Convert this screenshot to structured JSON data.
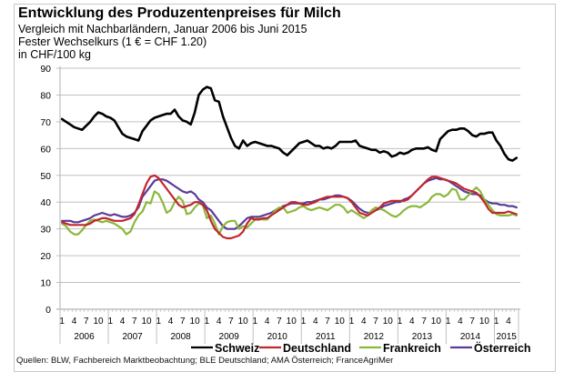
{
  "chart_data": {
    "type": "line",
    "title": "Entwicklung des Produzentenpreises für Milch",
    "subtitles": [
      "Vergleich mit Nachbarländern, Januar 2006 bis Juni 2015",
      "Fester Wechselkurs (1 € = CHF 1.20)",
      "in CHF/100 kg"
    ],
    "xlabel": "",
    "ylabel": "CHF/100 kg",
    "ylim": [
      0,
      90
    ],
    "yticks": [
      0,
      10,
      20,
      30,
      40,
      50,
      60,
      70,
      80,
      90
    ],
    "grid": true,
    "x_start": "2006-01",
    "x_end": "2015-06",
    "month_tick_labels": [
      "1",
      "4",
      "7",
      "10"
    ],
    "years": [
      "2006",
      "2007",
      "2008",
      "2009",
      "2010",
      "2011",
      "2012",
      "2013",
      "2014",
      "2015"
    ],
    "legend_position": "bottom",
    "series": [
      {
        "name": "Schweiz",
        "color": "#000000",
        "values": [
          71,
          70,
          69,
          68,
          67.5,
          67,
          68.5,
          70,
          72,
          73.5,
          73,
          72,
          71.5,
          70.5,
          68,
          65.5,
          64.5,
          64,
          63.5,
          63,
          66.5,
          68.5,
          70.5,
          71.5,
          72,
          72.5,
          73,
          73,
          74.5,
          72,
          70.5,
          70,
          69,
          73.5,
          80,
          82,
          83,
          82.5,
          78,
          77.5,
          72,
          68,
          64,
          61,
          60,
          63,
          61,
          62,
          62.5,
          62,
          61.5,
          61,
          61,
          60.5,
          60,
          58.5,
          57.5,
          59,
          60.5,
          62,
          62.5,
          63,
          62,
          61,
          61,
          60,
          60.5,
          60,
          61,
          62.5,
          62.5,
          62.5,
          62.5,
          63,
          61,
          60.5,
          60,
          59.5,
          59.5,
          58.5,
          59,
          58.5,
          57,
          57.5,
          58.5,
          58,
          58.5,
          59.5,
          60,
          60,
          60,
          60.5,
          59.5,
          59,
          63.5,
          65,
          66.5,
          67,
          67,
          67.5,
          67.5,
          66.5,
          65,
          64.5,
          65.5,
          65.5,
          66,
          66,
          63,
          61,
          58,
          56,
          55.5,
          56.5
        ]
      },
      {
        "name": "Deutschland",
        "color": "#c0262d",
        "values": [
          32.5,
          32,
          31.5,
          31.5,
          31.5,
          31.5,
          31.5,
          32,
          33,
          33.5,
          34,
          34,
          33.5,
          33,
          33,
          33,
          33.5,
          34,
          35.5,
          39,
          43,
          47,
          49.5,
          50,
          49,
          47,
          45,
          43,
          41,
          39,
          38,
          38.5,
          39,
          40,
          40,
          39,
          37,
          33,
          30,
          28.5,
          27,
          26.5,
          26.5,
          27,
          27.5,
          29,
          32,
          34,
          33.5,
          33.5,
          34,
          34,
          35,
          36,
          37,
          38,
          39,
          40,
          40,
          39.5,
          39,
          39,
          39.5,
          40,
          41,
          41.5,
          42,
          42,
          42,
          42,
          42,
          41.5,
          40,
          38,
          36,
          35.5,
          35,
          36,
          37,
          38,
          39.5,
          40,
          40.5,
          40.5,
          40.5,
          40.5,
          41,
          42.5,
          44,
          45.5,
          47,
          48.5,
          49.5,
          49.5,
          49,
          48.5,
          48,
          47.5,
          47,
          46,
          45,
          44.5,
          44,
          43.5,
          42,
          40,
          37.5,
          36,
          36,
          36,
          36,
          36.5,
          36,
          35.5
        ]
      },
      {
        "name": "Frankreich",
        "color": "#8ab83a",
        "values": [
          32,
          31,
          29,
          28,
          28,
          29.5,
          31.5,
          33,
          33.5,
          33,
          32.5,
          33,
          32.5,
          32,
          31,
          30,
          28,
          29,
          32.5,
          35,
          36.5,
          40,
          39.5,
          44,
          43,
          40,
          36,
          37,
          40,
          42,
          40.5,
          35.5,
          36,
          38,
          39.5,
          39,
          34,
          35,
          32,
          28,
          31,
          32.5,
          33,
          33,
          30,
          31,
          30.5,
          32,
          33.5,
          34,
          33.5,
          33.5,
          35,
          37,
          38,
          38,
          36,
          36.5,
          37,
          38,
          38.5,
          37.5,
          37,
          37.5,
          38,
          37.5,
          37,
          38,
          39,
          39,
          38,
          36,
          37,
          36,
          35,
          34,
          35,
          37,
          38,
          37.5,
          37,
          36,
          35,
          34.5,
          35.5,
          37,
          38,
          38.5,
          38.5,
          38,
          39,
          40,
          42,
          43,
          43,
          42,
          43,
          45,
          44.5,
          41,
          41,
          42.5,
          44,
          45.5,
          44,
          41,
          39,
          37,
          35.5,
          35,
          35,
          35,
          35.5,
          35
        ]
      },
      {
        "name": "Österreich",
        "color": "#5b3a9a",
        "values": [
          33,
          33,
          33,
          32.5,
          32.5,
          33,
          33.5,
          34,
          35,
          35.5,
          36,
          35.5,
          35,
          35.5,
          35,
          34.5,
          34.5,
          35,
          36,
          38,
          42,
          44,
          46,
          48,
          48.5,
          48.5,
          48,
          47,
          46,
          45,
          44,
          43.5,
          44,
          43,
          41,
          40,
          38,
          37,
          35,
          33,
          31,
          30,
          30,
          30,
          31,
          32.5,
          34,
          34.5,
          34.5,
          34.5,
          35,
          35.5,
          36,
          37,
          37.5,
          38.5,
          39,
          39.5,
          39.5,
          39.5,
          39.5,
          40,
          40,
          40.5,
          41,
          41,
          41.5,
          42,
          42.5,
          42.5,
          42,
          41.5,
          40.5,
          39,
          37.5,
          36.5,
          36,
          36,
          37,
          37.5,
          38.5,
          39,
          39.5,
          40,
          40,
          41,
          41.5,
          42.5,
          44,
          45.5,
          47,
          48,
          48.5,
          49,
          48.5,
          48.5,
          48,
          47,
          46,
          45,
          44,
          43.5,
          43,
          43,
          42.5,
          41,
          40,
          39.5,
          39.5,
          39,
          39,
          38.5,
          38.5,
          38
        ]
      }
    ]
  },
  "colors": {
    "grid": "#c0c0c0",
    "frame": "#c8c8c8"
  },
  "source_note": "Quellen: BLW, Fachbereich Marktbeobachtung; BLE Deutschland; AMA Österreich; FranceAgriMer"
}
